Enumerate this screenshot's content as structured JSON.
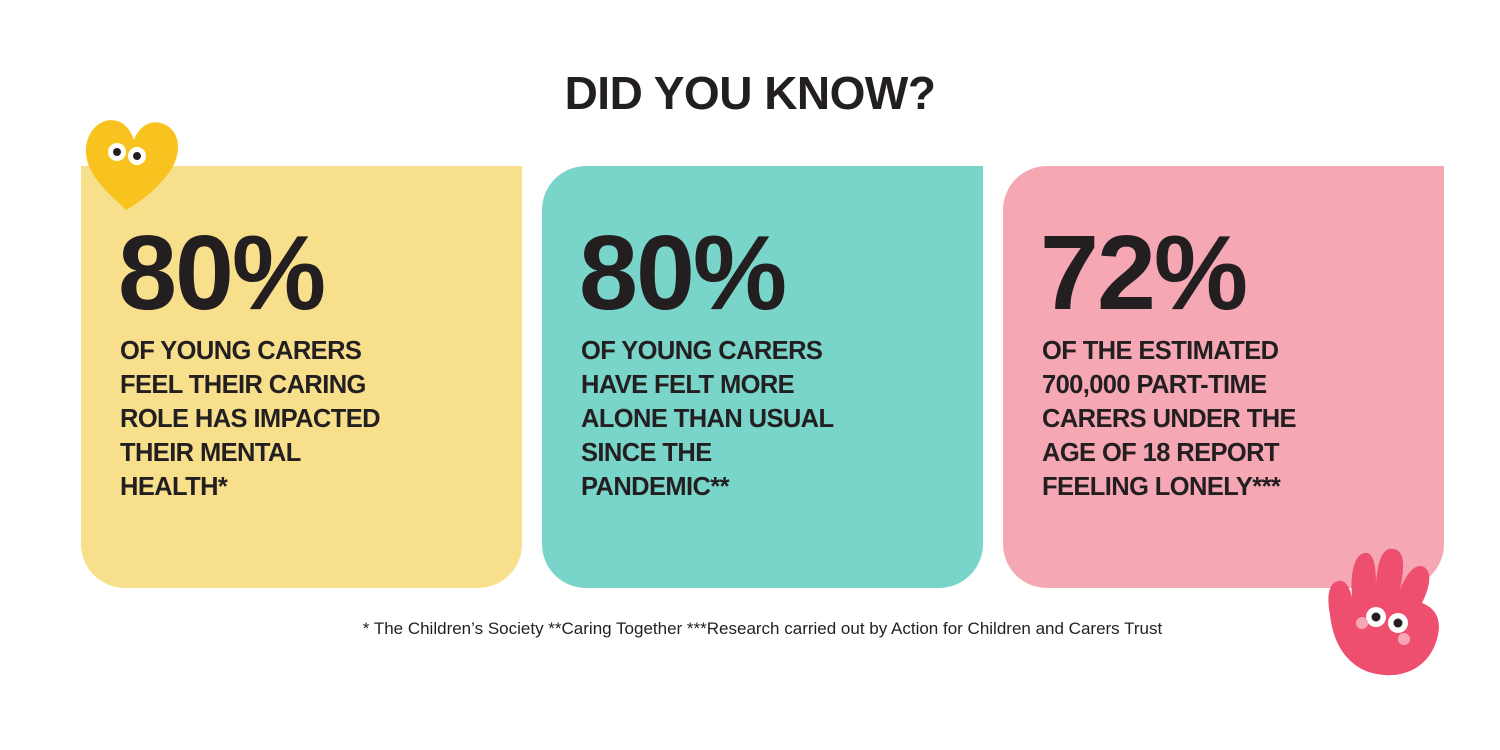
{
  "title": "DID YOU KNOW?",
  "cards": [
    {
      "stat": "80%",
      "lines": [
        "OF YOUNG CARERS",
        "FEEL THEIR CARING",
        "ROLE HAS IMPACTED",
        "THEIR MENTAL",
        "HEALTH*"
      ]
    },
    {
      "stat": "80%",
      "lines": [
        "OF YOUNG CARERS",
        "HAVE FELT MORE",
        "ALONE THAN USUAL",
        "SINCE THE",
        "PANDEMIC**"
      ]
    },
    {
      "stat": "72%",
      "lines": [
        "OF THE ESTIMATED",
        "700,000 PART-TIME",
        "CARERS UNDER THE",
        "AGE OF 18 REPORT",
        "FEELING LONELY***"
      ]
    }
  ],
  "footnote": "* The Children’s Society **Caring Together ***Research carried out by Action for Children and Carers Trust"
}
